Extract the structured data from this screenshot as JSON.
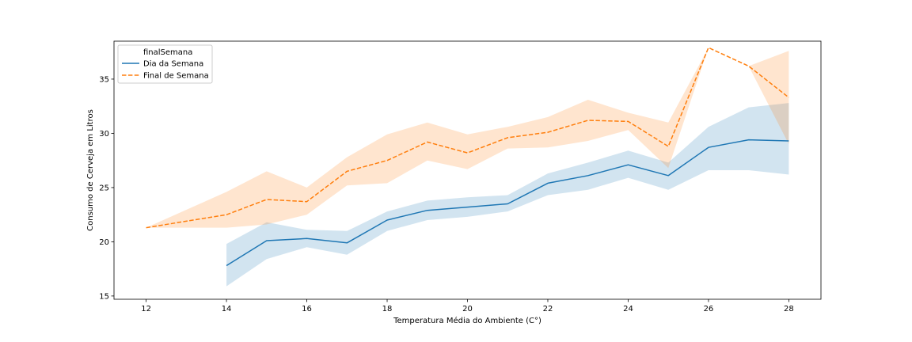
{
  "chart_data": {
    "type": "line",
    "title": "",
    "xlabel": "Temperatura Média do Ambiente (C°)",
    "ylabel": "Consumo de Cerveja em Litros",
    "xlim": [
      11.2,
      28.8
    ],
    "ylim": [
      14.7,
      38.5
    ],
    "xticks": [
      12,
      14,
      16,
      18,
      20,
      22,
      24,
      26,
      28
    ],
    "yticks": [
      15,
      20,
      25,
      30,
      35
    ],
    "grid": false,
    "legend": {
      "title": "finalSemana",
      "placement": "top-left"
    },
    "series": [
      {
        "name": "Dia da Semana",
        "color": "#1f77b4",
        "dash": "solid",
        "x": [
          14,
          15,
          16,
          17,
          18,
          19,
          20,
          21,
          22,
          23,
          24,
          25,
          26,
          27,
          28
        ],
        "y": [
          17.8,
          20.1,
          20.3,
          19.9,
          22.0,
          22.9,
          23.2,
          23.5,
          25.4,
          26.1,
          27.1,
          26.1,
          28.7,
          29.4,
          29.3
        ],
        "ci_low": [
          15.9,
          18.4,
          19.5,
          18.8,
          21.0,
          22.0,
          22.3,
          22.8,
          24.3,
          24.8,
          25.9,
          24.8,
          26.6,
          26.6,
          26.2
        ],
        "ci_high": [
          19.8,
          21.8,
          21.1,
          21.0,
          22.8,
          23.8,
          24.1,
          24.3,
          26.3,
          27.3,
          28.4,
          27.3,
          30.6,
          32.4,
          32.8
        ]
      },
      {
        "name": "Final de Semana",
        "color": "#ff7f0e",
        "dash": "dashed",
        "x": [
          12,
          14,
          15,
          16,
          17,
          18,
          19,
          20,
          21,
          22,
          23,
          24,
          25,
          26,
          27,
          28
        ],
        "y": [
          21.3,
          22.5,
          23.9,
          23.7,
          26.5,
          27.5,
          29.2,
          28.2,
          29.6,
          30.1,
          31.2,
          31.1,
          28.8,
          37.9,
          36.2,
          33.3
        ],
        "ci_low": [
          21.3,
          21.3,
          21.6,
          22.5,
          25.2,
          25.4,
          27.5,
          26.7,
          28.6,
          28.7,
          29.3,
          30.3,
          26.8,
          37.9,
          36.2,
          29.0
        ],
        "ci_high": [
          21.3,
          24.6,
          26.5,
          25.0,
          27.8,
          29.9,
          31.0,
          29.9,
          30.6,
          31.5,
          33.1,
          31.9,
          31.0,
          37.9,
          36.2,
          37.6
        ]
      }
    ]
  }
}
